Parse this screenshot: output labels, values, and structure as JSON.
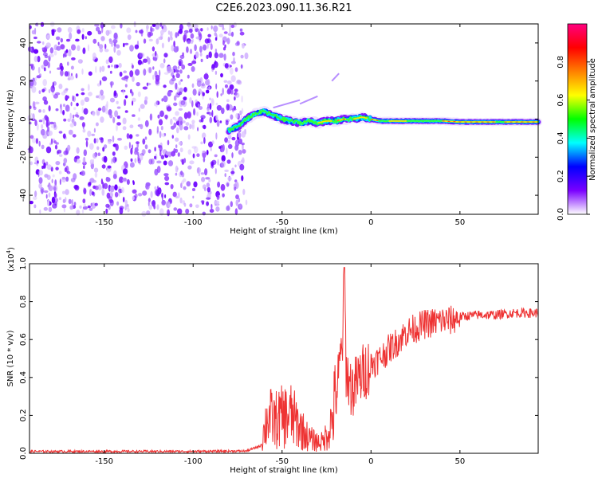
{
  "title": "C2E6.2023.090.11.36.R21",
  "chart_data": [
    {
      "type": "heatmap",
      "xlabel": "Height of straight line (km)",
      "ylabel": "Frequency (Hz)",
      "xlim": [
        -192,
        94
      ],
      "ylim": [
        -50,
        50
      ],
      "xticks": [
        -150,
        -100,
        -50,
        0,
        50
      ],
      "yticks": [
        -40,
        -20,
        0,
        20,
        40
      ],
      "noise_region_x": [
        -192,
        -70
      ],
      "ridge": {
        "x": [
          -80,
          -75,
          -70,
          -65,
          -60,
          -55,
          -50,
          -45,
          -40,
          -35,
          -30,
          -25,
          -20,
          -15,
          -10,
          -5,
          0,
          5,
          10,
          20,
          30,
          40,
          50,
          60,
          70,
          80,
          94
        ],
        "freq": [
          -6,
          -4,
          0,
          3,
          4,
          2,
          0,
          -1,
          -2,
          -1,
          -2,
          -1,
          -1,
          0,
          0,
          1,
          0,
          -1,
          -1,
          -1,
          -1,
          -1,
          -1.5,
          -1.5,
          -1.5,
          -1.5,
          -1.5
        ]
      },
      "colorbar": {
        "label": "Normalized spectral amplitude",
        "ticks": [
          "0.0",
          "0.2",
          "0.4",
          "0.6",
          "0.8"
        ],
        "range": [
          0,
          1
        ],
        "colors": [
          "#ffffff",
          "#7a00ff",
          "#0000ff",
          "#00ffff",
          "#00ff00",
          "#ffff00",
          "#ff8000",
          "#ff0000",
          "#ff0080"
        ]
      }
    },
    {
      "type": "line",
      "xlabel": "Height of straight line (km)",
      "ylabel": "SNR (10 * v/v)",
      "yscale_note": "(x10",
      "yscale_exp": "4",
      "yscale_close": ")",
      "xlim": [
        -192,
        94
      ],
      "ylim": [
        0,
        1.0
      ],
      "xticks": [
        -150,
        -100,
        -50,
        0,
        50
      ],
      "yticks": [
        "0.0",
        "0.2",
        "0.4",
        "0.6",
        "0.8",
        "1.0"
      ],
      "color": "#ee3333",
      "series": [
        {
          "x": [
            -192,
            -150,
            -100,
            -70,
            -62,
            -60,
            -58,
            -55,
            -50,
            -45,
            -40,
            -35,
            -30,
            -27,
            -25,
            -22,
            -20,
            -18,
            -16,
            -15,
            -14,
            -12,
            -10,
            -5,
            0,
            5,
            10,
            15,
            20,
            25,
            30,
            35,
            40,
            45,
            50,
            60,
            70,
            80,
            94
          ],
          "y": [
            0.01,
            0.01,
            0.01,
            0.012,
            0.04,
            0.12,
            0.2,
            0.17,
            0.19,
            0.2,
            0.14,
            0.08,
            0.06,
            0.06,
            0.1,
            0.17,
            0.28,
            0.42,
            0.6,
            0.98,
            0.45,
            0.36,
            0.34,
            0.42,
            0.47,
            0.5,
            0.55,
            0.59,
            0.64,
            0.66,
            0.68,
            0.69,
            0.7,
            0.7,
            0.72,
            0.73,
            0.73,
            0.74,
            0.74
          ]
        }
      ]
    }
  ]
}
